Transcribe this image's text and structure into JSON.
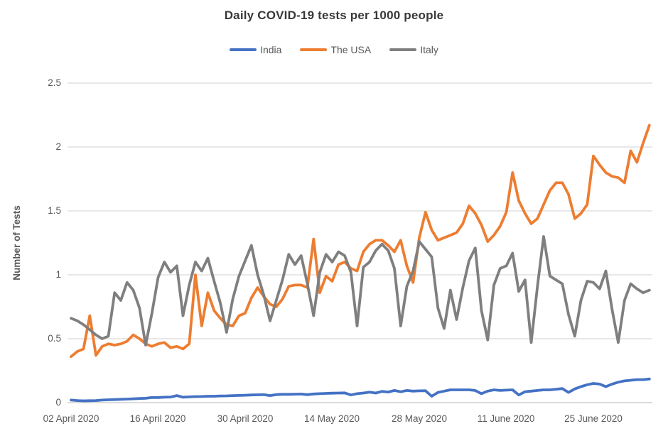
{
  "chart_data": {
    "type": "line",
    "title": "Daily COVID-19 tests per 1000 people",
    "ylabel": "Number of Tests",
    "ylim": [
      0,
      2.5
    ],
    "yticks": [
      2.5,
      2,
      1.5,
      1,
      0.5,
      0
    ],
    "ytick_labels": [
      "2.5",
      "2",
      "1.5",
      "1",
      "0.5",
      "0"
    ],
    "x": {
      "start": "02 April 2020",
      "interval": "1 day",
      "points": 94
    },
    "xtick_labels": [
      "02 April 2020",
      "16 April 2020",
      "30 April 2020",
      "14 May 2020",
      "28 May 2020",
      "11 June 2020",
      "25 June 2020"
    ],
    "xtick_day_indices": [
      0,
      14,
      28,
      42,
      56,
      70,
      84
    ],
    "grid": true,
    "legend_position": "top",
    "background": "#ffffff",
    "gridline_color": "#d9d9d9",
    "axis_line_color": "#cfcfcf",
    "text_color": "#595959",
    "series": [
      {
        "name": "India",
        "color": "#4472C4",
        "values": [
          0.02,
          0.016,
          0.014,
          0.015,
          0.016,
          0.02,
          0.022,
          0.024,
          0.026,
          0.028,
          0.03,
          0.032,
          0.034,
          0.04,
          0.04,
          0.042,
          0.044,
          0.055,
          0.042,
          0.045,
          0.047,
          0.048,
          0.05,
          0.05,
          0.052,
          0.053,
          0.055,
          0.056,
          0.058,
          0.06,
          0.061,
          0.062,
          0.055,
          0.063,
          0.065,
          0.065,
          0.066,
          0.067,
          0.062,
          0.068,
          0.07,
          0.072,
          0.074,
          0.075,
          0.076,
          0.06,
          0.07,
          0.075,
          0.082,
          0.075,
          0.088,
          0.083,
          0.095,
          0.085,
          0.095,
          0.09,
          0.092,
          0.093,
          0.05,
          0.08,
          0.09,
          0.1,
          0.1,
          0.1,
          0.1,
          0.095,
          0.07,
          0.09,
          0.1,
          0.095,
          0.098,
          0.1,
          0.06,
          0.085,
          0.09,
          0.095,
          0.1,
          0.1,
          0.105,
          0.11,
          0.08,
          0.107,
          0.125,
          0.14,
          0.15,
          0.145,
          0.125,
          0.145,
          0.16,
          0.17,
          0.175,
          0.18,
          0.18,
          0.185
        ]
      },
      {
        "name": "The USA",
        "color": "#ED7D31",
        "values": [
          0.36,
          0.4,
          0.42,
          0.68,
          0.37,
          0.44,
          0.46,
          0.45,
          0.46,
          0.48,
          0.53,
          0.5,
          0.46,
          0.44,
          0.46,
          0.47,
          0.43,
          0.44,
          0.42,
          0.46,
          1.0,
          0.6,
          0.86,
          0.72,
          0.66,
          0.61,
          0.6,
          0.68,
          0.7,
          0.82,
          0.9,
          0.83,
          0.77,
          0.75,
          0.81,
          0.91,
          0.92,
          0.92,
          0.9,
          1.28,
          0.86,
          0.99,
          0.95,
          1.08,
          1.1,
          1.05,
          1.03,
          1.18,
          1.24,
          1.27,
          1.27,
          1.23,
          1.18,
          1.27,
          1.07,
          0.94,
          1.29,
          1.49,
          1.35,
          1.27,
          1.29,
          1.31,
          1.33,
          1.4,
          1.54,
          1.48,
          1.39,
          1.26,
          1.31,
          1.38,
          1.49,
          1.8,
          1.58,
          1.48,
          1.4,
          1.44,
          1.55,
          1.66,
          1.72,
          1.72,
          1.63,
          1.44,
          1.48,
          1.55,
          1.93,
          1.86,
          1.8,
          1.77,
          1.76,
          1.72,
          1.97,
          1.88,
          2.03,
          2.17
        ]
      },
      {
        "name": "Italy",
        "color": "#7F7F7F",
        "values": [
          0.66,
          0.64,
          0.61,
          0.57,
          0.53,
          0.5,
          0.52,
          0.86,
          0.8,
          0.94,
          0.88,
          0.74,
          0.45,
          0.7,
          0.98,
          1.1,
          1.02,
          1.07,
          0.68,
          0.92,
          1.1,
          1.03,
          1.13,
          0.95,
          0.78,
          0.55,
          0.81,
          0.99,
          1.11,
          1.23,
          1.0,
          0.84,
          0.64,
          0.8,
          0.96,
          1.16,
          1.08,
          1.15,
          0.93,
          0.68,
          1.02,
          1.16,
          1.1,
          1.18,
          1.15,
          1.02,
          0.6,
          1.06,
          1.1,
          1.19,
          1.24,
          1.19,
          1.05,
          0.6,
          0.91,
          1.03,
          1.26,
          1.2,
          1.14,
          0.74,
          0.58,
          0.88,
          0.65,
          0.9,
          1.11,
          1.21,
          0.72,
          0.49,
          0.92,
          1.05,
          1.07,
          1.17,
          0.87,
          0.96,
          0.47,
          0.91,
          1.3,
          0.99,
          0.96,
          0.93,
          0.69,
          0.52,
          0.8,
          0.95,
          0.94,
          0.89,
          1.03,
          0.73,
          0.47,
          0.8,
          0.93,
          0.89,
          0.86,
          0.88
        ]
      }
    ]
  }
}
